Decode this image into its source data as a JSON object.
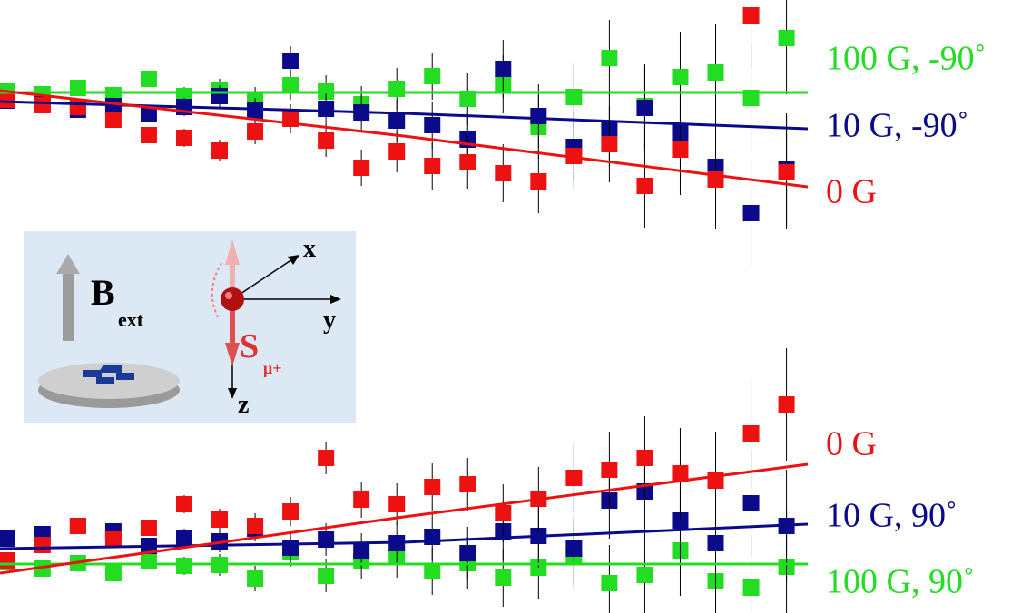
{
  "chart_data": [
    {
      "type": "scatter",
      "xlim": [
        -0.2,
        22.6
      ],
      "ylim": [
        0,
        38
      ],
      "x": [
        0,
        1,
        2,
        3,
        4,
        5,
        6,
        7,
        8,
        9,
        10,
        11,
        12,
        13,
        14,
        15,
        16,
        17,
        18,
        19,
        20,
        21,
        22
      ],
      "fit_x": [
        -0.2,
        11.2,
        22.6
      ],
      "series": [
        {
          "name": "100 G, -90˚",
          "color": "#22dd22",
          "values": [
            28.0,
            27.6,
            28.3,
            27.5,
            29.3,
            27.4,
            28.1,
            27.0,
            28.6,
            27.9,
            26.5,
            28.2,
            29.6,
            27.1,
            28.7,
            24.0,
            27.3,
            31.6,
            26.3,
            29.5,
            30.0,
            27.2,
            33.8
          ],
          "errors": [
            0.5,
            0.6,
            0.7,
            0.8,
            0.9,
            1.0,
            1.2,
            1.4,
            1.6,
            1.8,
            2.0,
            2.3,
            2.6,
            2.9,
            3.2,
            3.5,
            3.8,
            4.2,
            4.6,
            5.0,
            5.4,
            5.8,
            6.2
          ],
          "fit": [
            27.8,
            27.8,
            27.8
          ]
        },
        {
          "name": "10 G, -90˚",
          "color": "#0a0a8a",
          "values": [
            26.9,
            26.5,
            25.9,
            26.3,
            25.4,
            26.2,
            27.4,
            25.8,
            31.3,
            26.0,
            25.6,
            24.7,
            24.2,
            22.6,
            30.4,
            25.2,
            21.8,
            23.8,
            26.1,
            23.4,
            19.6,
            14.5,
            19.3
          ],
          "errors": [
            0.5,
            0.6,
            0.7,
            0.8,
            0.9,
            1.0,
            1.2,
            1.4,
            1.6,
            1.8,
            2.0,
            2.3,
            2.6,
            2.9,
            3.2,
            3.5,
            3.8,
            4.2,
            4.6,
            5.0,
            5.4,
            5.8,
            6.2
          ],
          "fit": [
            26.8,
            25.5,
            23.8
          ]
        },
        {
          "name": "0 G",
          "color": "#ee1111",
          "values": [
            27.0,
            26.4,
            26.2,
            24.8,
            23.1,
            22.8,
            21.4,
            23.5,
            24.9,
            22.5,
            19.5,
            21.3,
            19.7,
            20.1,
            18.9,
            18.0,
            20.8,
            22.1,
            17.5,
            21.5,
            18.2,
            36.3,
            19.0
          ],
          "errors": [
            0.5,
            0.6,
            0.7,
            0.8,
            0.9,
            1.0,
            1.2,
            1.4,
            1.6,
            1.8,
            2.0,
            2.3,
            2.6,
            2.9,
            3.2,
            3.5,
            3.8,
            4.2,
            4.6,
            5.0,
            5.4,
            5.8,
            6.2
          ],
          "fit": [
            28.0,
            23.0,
            17.4
          ]
        }
      ]
    },
    {
      "type": "scatter",
      "xlim": [
        -0.2,
        22.6
      ],
      "ylim": [
        0,
        32.6
      ],
      "x": [
        0,
        1,
        2,
        3,
        4,
        5,
        6,
        7,
        8,
        9,
        10,
        11,
        12,
        13,
        14,
        15,
        16,
        17,
        18,
        19,
        20,
        21,
        22
      ],
      "fit_x": [
        -0.2,
        11.2,
        22.6
      ],
      "series": [
        {
          "name": "100 G, 90˚",
          "color": "#22dd22",
          "values": [
            5.6,
            4.9,
            5.5,
            4.4,
            5.8,
            5.2,
            5.3,
            3.8,
            6.7,
            4.1,
            5.7,
            6.2,
            4.6,
            5.5,
            3.9,
            5.0,
            6.4,
            3.3,
            4.2,
            6.9,
            3.5,
            2.8,
            5.1
          ],
          "errors": [
            0.5,
            0.6,
            0.7,
            0.8,
            0.9,
            1.0,
            1.2,
            1.4,
            1.6,
            1.8,
            2.0,
            2.3,
            2.6,
            2.9,
            3.2,
            3.5,
            3.8,
            4.2,
            4.6,
            5.0,
            5.4,
            5.8,
            6.2
          ],
          "fit": [
            5.4,
            5.4,
            5.4
          ]
        },
        {
          "name": "10 G, 90˚",
          "color": "#0a0a8a",
          "values": [
            8.2,
            8.7,
            9.6,
            9.0,
            7.4,
            8.3,
            7.9,
            9.3,
            7.2,
            8.1,
            6.8,
            7.7,
            8.4,
            6.6,
            9.0,
            8.5,
            7.1,
            12.4,
            13.4,
            10.2,
            7.7,
            12.1,
            9.6
          ],
          "errors": [
            0.5,
            0.6,
            0.7,
            0.8,
            0.9,
            1.0,
            1.2,
            1.4,
            1.6,
            1.8,
            2.0,
            2.3,
            2.6,
            2.9,
            3.2,
            3.5,
            3.8,
            4.2,
            4.6,
            5.0,
            5.4,
            5.8,
            6.2
          ],
          "fit": [
            7.1,
            7.8,
            9.8
          ]
        },
        {
          "name": "0 G",
          "color": "#ee1111",
          "values": [
            5.8,
            7.5,
            9.6,
            8.1,
            9.4,
            12.0,
            10.3,
            9.6,
            11.2,
            17.1,
            12.5,
            12.0,
            13.9,
            14.2,
            11.0,
            12.6,
            14.9,
            15.8,
            17.1,
            15.4,
            14.6,
            19.8,
            23.0
          ],
          "errors": [
            0.5,
            0.6,
            0.7,
            0.8,
            0.9,
            1.0,
            1.2,
            1.4,
            1.6,
            1.8,
            2.0,
            2.3,
            2.6,
            2.9,
            3.2,
            3.5,
            3.8,
            4.2,
            4.6,
            5.0,
            5.4,
            5.8,
            6.2
          ],
          "fit": [
            4.4,
            10.6,
            16.4
          ]
        }
      ]
    }
  ],
  "inset": {
    "field": "B",
    "field_sub": "ext",
    "axis_x": "x",
    "axis_y": "y",
    "axis_z": "z",
    "spin": "S",
    "spin_sub": "μ+"
  }
}
